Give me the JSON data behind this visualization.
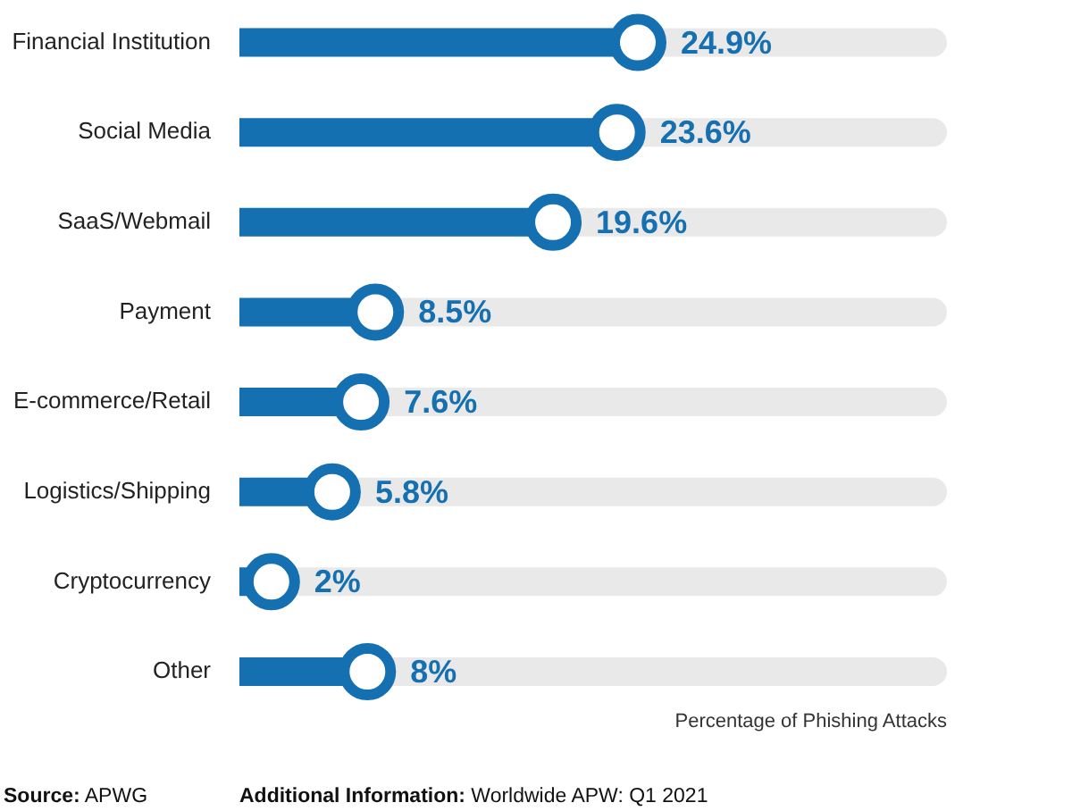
{
  "chart_data": {
    "type": "lollipop",
    "orientation": "horizontal",
    "categories": [
      "Financial Institution",
      "Social Media",
      "SaaS/Webmail",
      "Payment",
      "E-commerce/Retail",
      "Logistics/Shipping",
      "Cryptocurrency",
      "Other"
    ],
    "values": [
      24.9,
      23.6,
      19.6,
      8.5,
      7.6,
      5.8,
      2,
      8
    ],
    "color": "#1570b2",
    "value_labels": [
      "24.9%",
      "23.6%",
      "19.6%",
      "8.5%",
      "7.6%",
      "5.8%",
      "2%",
      "8%"
    ],
    "tick_labels": "y",
    "marker": "circle",
    "grid": "y",
    "xlabel": "Percentage of Phishing Attacks",
    "annotations": [
      "Source: APWG",
      "Additional Information: Worldwide APW: Q1 2021"
    ]
  }
}
